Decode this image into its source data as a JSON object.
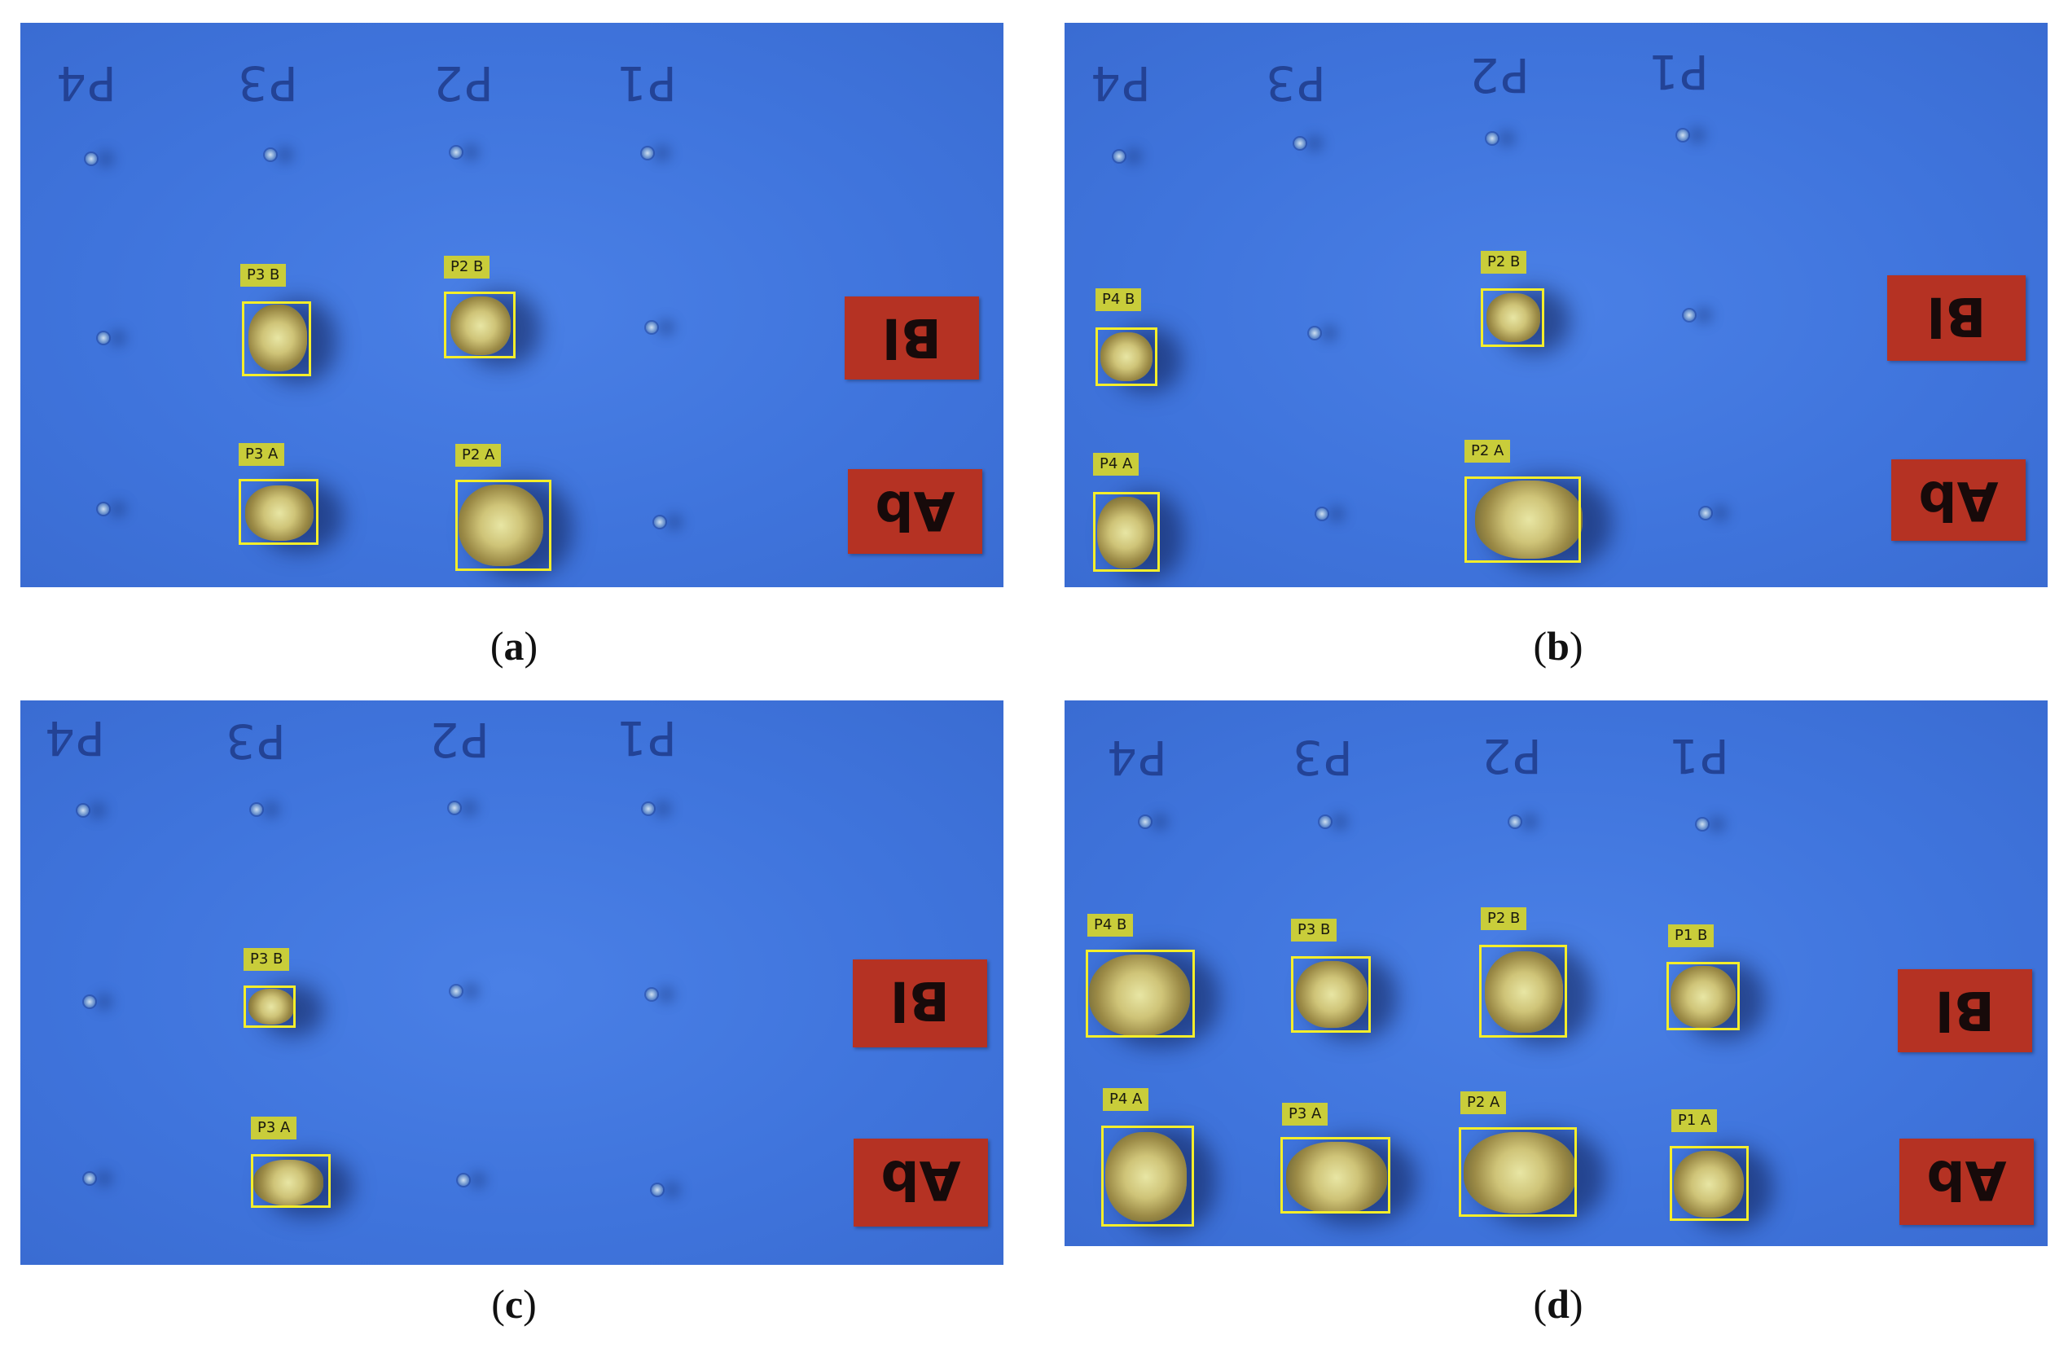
{
  "panels": [
    {
      "caption_letter": "a",
      "cols": [
        "P4",
        "P3",
        "P2",
        "P1"
      ],
      "signs": [
        "Bl",
        "Ab"
      ],
      "tags": [
        "P3 B",
        "P2 B",
        "P3 A",
        "P2 A"
      ]
    },
    {
      "caption_letter": "b",
      "cols": [
        "P4",
        "P3",
        "P2",
        "P1"
      ],
      "signs": [
        "Bl",
        "Ab"
      ],
      "tags": [
        "P4 B",
        "P2 B",
        "P4 A",
        "P2 A"
      ]
    },
    {
      "caption_letter": "c",
      "cols": [
        "P4",
        "P3",
        "P2",
        "P1"
      ],
      "signs": [
        "Bl",
        "Ab"
      ],
      "tags": [
        "P3 B",
        "P3 A"
      ]
    },
    {
      "caption_letter": "d",
      "cols": [
        "P4",
        "P3",
        "P2",
        "P1"
      ],
      "signs": [
        "Bl",
        "Ab"
      ],
      "tags": [
        "P4 B",
        "P3 B",
        "P2 B",
        "P1 B",
        "P4 A",
        "P3 A",
        "P2 A",
        "P1 A"
      ]
    }
  ],
  "colors": {
    "background_board": "#3f74dc",
    "sign_red": "#b53223",
    "bbox_yellow": "#f4ee2a",
    "tag_fill": "#c9cd3a"
  }
}
